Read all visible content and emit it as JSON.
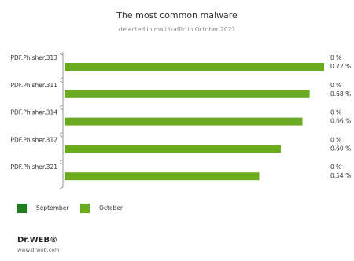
{
  "chart_data": {
    "type": "bar",
    "orientation": "horizontal",
    "title": "The most common malware",
    "subtitle": "detected in mail traffic in October 2021",
    "categories": [
      "PDF.Phisher.313",
      "PDF.Phisher.311",
      "PDF.Phisher.314",
      "PDF.Phisher.312",
      "PDF.Phisher.321"
    ],
    "series": [
      {
        "name": "September",
        "color": "#1e7d1e",
        "values": [
          0,
          0,
          0,
          0,
          0
        ],
        "value_labels": [
          "0 %",
          "0 %",
          "0 %",
          "0 %",
          "0 %"
        ]
      },
      {
        "name": "October",
        "color": "#6aab1f",
        "values": [
          0.72,
          0.68,
          0.66,
          0.6,
          0.54
        ],
        "value_labels": [
          "0.72 %",
          "0.68 %",
          "0.66 %",
          "0.60 %",
          "0.54 %"
        ]
      }
    ]
  },
  "footer": {
    "logo": "Dr.WEB®",
    "url": "www.drweb.com"
  }
}
